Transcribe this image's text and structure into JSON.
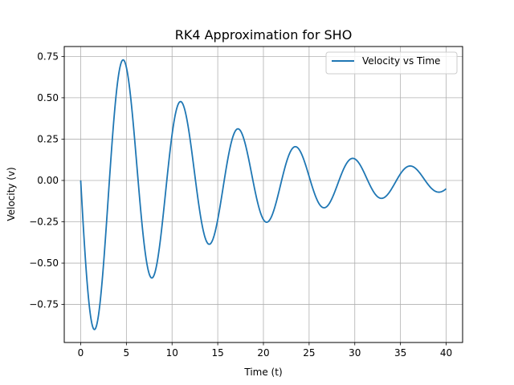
{
  "chart_data": {
    "type": "line",
    "title": "RK4 Approximation for SHO",
    "xlabel": "Time (t)",
    "ylabel": "Velocity (v)",
    "xlim": [
      -1.8,
      41.8
    ],
    "ylim": [
      -0.98,
      0.81
    ],
    "xticks": [
      0,
      5,
      10,
      15,
      20,
      25,
      30,
      35,
      40
    ],
    "xtick_labels": [
      "0",
      "5",
      "10",
      "15",
      "20",
      "25",
      "30",
      "35",
      "40"
    ],
    "yticks": [
      -0.75,
      -0.5,
      -0.25,
      0.0,
      0.25,
      0.5,
      0.75
    ],
    "ytick_labels": [
      "−0.75",
      "−0.50",
      "−0.25",
      "0.00",
      "0.25",
      "0.50",
      "0.75"
    ],
    "grid": true,
    "legend_position": "upper right",
    "series": [
      {
        "name": "Velocity vs Time",
        "color": "#1f77b4",
        "function": "damped_sine",
        "amplitude": -1.0,
        "damping": 0.0675,
        "omega": 1.0,
        "x_range": [
          0,
          40
        ],
        "sample_points": [
          {
            "x": 0,
            "y": 0.0
          },
          {
            "x": 1.5,
            "y": -0.9
          },
          {
            "x": 4.6,
            "y": 0.73
          },
          {
            "x": 7.8,
            "y": -0.59
          },
          {
            "x": 10.9,
            "y": 0.48
          },
          {
            "x": 14.1,
            "y": -0.39
          },
          {
            "x": 17.2,
            "y": 0.31
          },
          {
            "x": 20.3,
            "y": -0.26
          },
          {
            "x": 23.5,
            "y": 0.21
          },
          {
            "x": 26.6,
            "y": -0.17
          },
          {
            "x": 29.8,
            "y": 0.135
          },
          {
            "x": 32.9,
            "y": -0.11
          },
          {
            "x": 36.0,
            "y": 0.09
          },
          {
            "x": 39.2,
            "y": -0.07
          },
          {
            "x": 40,
            "y": -0.055
          }
        ]
      }
    ]
  }
}
